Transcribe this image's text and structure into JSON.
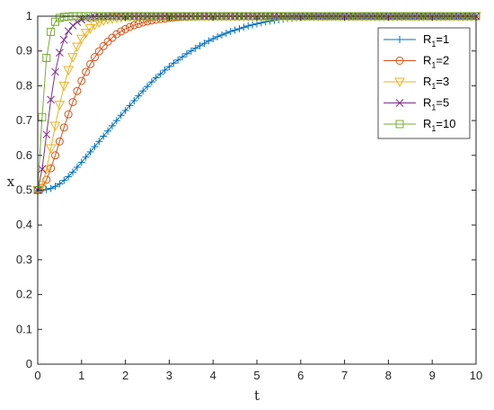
{
  "chart_data": {
    "type": "line",
    "title": "",
    "xlabel": "t",
    "ylabel": "x",
    "xlim": [
      0,
      10
    ],
    "ylim": [
      0,
      1
    ],
    "xticks": [
      "0",
      "1",
      "2",
      "3",
      "4",
      "5",
      "6",
      "7",
      "8",
      "9",
      "10"
    ],
    "yticks": [
      "0",
      "0.1",
      "0.2",
      "0.3",
      "0.4",
      "0.5",
      "0.6",
      "0.7",
      "0.8",
      "0.9",
      "1"
    ],
    "grid": false,
    "legend_position": "top-right",
    "x_start": 0,
    "x_end": 10,
    "x_step": 0.1,
    "series": [
      {
        "name_main": "R",
        "name_sub": "1",
        "name_rest": "=1",
        "color": "#0072BD",
        "marker": "plus",
        "values": [
          0.5,
          0.5,
          0.502,
          0.505,
          0.511,
          0.518,
          0.528,
          0.539,
          0.552,
          0.566,
          0.58,
          0.595,
          0.61,
          0.625,
          0.64,
          0.655,
          0.67,
          0.685,
          0.7,
          0.715,
          0.729,
          0.743,
          0.757,
          0.771,
          0.785,
          0.798,
          0.811,
          0.823,
          0.834,
          0.845,
          0.855,
          0.865,
          0.874,
          0.883,
          0.892,
          0.9,
          0.908,
          0.915,
          0.922,
          0.929,
          0.935,
          0.941,
          0.946,
          0.951,
          0.956,
          0.96,
          0.964,
          0.968,
          0.972,
          0.975,
          0.978,
          0.981,
          0.984,
          0.986,
          0.988,
          0.99,
          0.992,
          0.993,
          0.994,
          0.995,
          0.996,
          0.997,
          0.998,
          0.998,
          0.999,
          0.999,
          1,
          1,
          1,
          1,
          1,
          1,
          1,
          1,
          1,
          1,
          1,
          1,
          1,
          1,
          1,
          1,
          1,
          1,
          1,
          1,
          1,
          1,
          1,
          1,
          1,
          1,
          1,
          1,
          1,
          1,
          1,
          1,
          1,
          1,
          1
        ]
      },
      {
        "name_main": "R",
        "name_sub": "1",
        "name_rest": "=2",
        "color": "#D95319",
        "marker": "circle",
        "values": [
          0.5,
          0.507,
          0.53,
          0.563,
          0.6,
          0.64,
          0.68,
          0.718,
          0.753,
          0.785,
          0.814,
          0.84,
          0.862,
          0.882,
          0.899,
          0.914,
          0.927,
          0.938,
          0.948,
          0.956,
          0.963,
          0.969,
          0.974,
          0.978,
          0.982,
          0.985,
          0.988,
          0.99,
          0.992,
          0.993,
          0.995,
          0.996,
          0.997,
          0.998,
          0.998,
          0.999,
          0.999,
          1,
          1,
          1,
          1,
          1,
          1,
          1,
          1,
          1,
          1,
          1,
          1,
          1,
          1,
          1,
          1,
          1,
          1,
          1,
          1,
          1,
          1,
          1,
          1,
          1,
          1,
          1,
          1,
          1,
          1,
          1,
          1,
          1,
          1,
          1,
          1,
          1,
          1,
          1,
          1,
          1,
          1,
          1,
          1,
          1,
          1,
          1,
          1,
          1,
          1,
          1,
          1,
          1,
          1,
          1,
          1,
          1,
          1,
          1,
          1,
          1,
          1,
          1,
          1
        ]
      },
      {
        "name_main": "R",
        "name_sub": "1",
        "name_rest": "=3",
        "color": "#EDB120",
        "marker": "triangle-down",
        "values": [
          0.5,
          0.515,
          0.56,
          0.62,
          0.685,
          0.745,
          0.8,
          0.845,
          0.882,
          0.912,
          0.935,
          0.952,
          0.965,
          0.975,
          0.982,
          0.987,
          0.991,
          0.993,
          0.995,
          0.997,
          0.998,
          0.999,
          0.999,
          1,
          1,
          1,
          1,
          1,
          1,
          1,
          1,
          1,
          1,
          1,
          1,
          1,
          1,
          1,
          1,
          1,
          1,
          1,
          1,
          1,
          1,
          1,
          1,
          1,
          1,
          1,
          1,
          1,
          1,
          1,
          1,
          1,
          1,
          1,
          1,
          1,
          1,
          1,
          1,
          1,
          1,
          1,
          1,
          1,
          1,
          1,
          1,
          1,
          1,
          1,
          1,
          1,
          1,
          1,
          1,
          1,
          1,
          1,
          1,
          1,
          1,
          1,
          1,
          1,
          1,
          1,
          1,
          1,
          1,
          1,
          1,
          1,
          1,
          1,
          1,
          1,
          1
        ]
      },
      {
        "name_main": "R",
        "name_sub": "1",
        "name_rest": "=5",
        "color": "#7E2F8E",
        "marker": "cross",
        "values": [
          0.5,
          0.56,
          0.66,
          0.76,
          0.84,
          0.895,
          0.932,
          0.957,
          0.973,
          0.983,
          0.99,
          0.994,
          0.996,
          0.998,
          0.999,
          0.999,
          1,
          1,
          1,
          1,
          1,
          1,
          1,
          1,
          1,
          1,
          1,
          1,
          1,
          1,
          1,
          1,
          1,
          1,
          1,
          1,
          1,
          1,
          1,
          1,
          1,
          1,
          1,
          1,
          1,
          1,
          1,
          1,
          1,
          1,
          1,
          1,
          1,
          1,
          1,
          1,
          1,
          1,
          1,
          1,
          1,
          1,
          1,
          1,
          1,
          1,
          1,
          1,
          1,
          1,
          1,
          1,
          1,
          1,
          1,
          1,
          1,
          1,
          1,
          1,
          1,
          1,
          1,
          1,
          1,
          1,
          1,
          1,
          1,
          1,
          1,
          1,
          1,
          1,
          1,
          1,
          1,
          1,
          1,
          1,
          1
        ]
      },
      {
        "name_main": "R",
        "name_sub": "1",
        "name_rest": "=10",
        "color": "#77AC30",
        "marker": "square",
        "values": [
          0.5,
          0.71,
          0.88,
          0.955,
          0.984,
          0.995,
          0.998,
          0.999,
          1,
          1,
          1,
          1,
          1,
          1,
          1,
          1,
          1,
          1,
          1,
          1,
          1,
          1,
          1,
          1,
          1,
          1,
          1,
          1,
          1,
          1,
          1,
          1,
          1,
          1,
          1,
          1,
          1,
          1,
          1,
          1,
          1,
          1,
          1,
          1,
          1,
          1,
          1,
          1,
          1,
          1,
          1,
          1,
          1,
          1,
          1,
          1,
          1,
          1,
          1,
          1,
          1,
          1,
          1,
          1,
          1,
          1,
          1,
          1,
          1,
          1,
          1,
          1,
          1,
          1,
          1,
          1,
          1,
          1,
          1,
          1,
          1,
          1,
          1,
          1,
          1,
          1,
          1,
          1,
          1,
          1,
          1,
          1,
          1,
          1,
          1,
          1,
          1,
          1,
          1,
          1,
          1
        ]
      }
    ]
  }
}
